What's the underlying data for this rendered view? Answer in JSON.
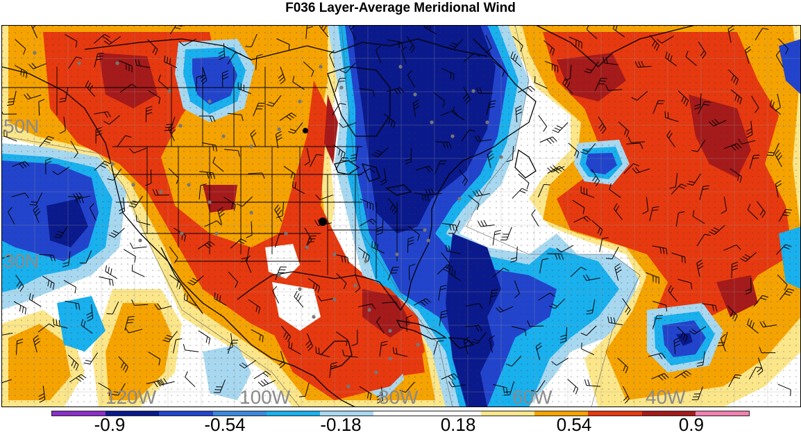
{
  "title": "F036 Layer-Average Meridional Wind",
  "lat_labels": [
    "50N",
    "30N"
  ],
  "lon_labels": [
    "120W",
    "100W",
    "80W",
    "60W",
    "40W"
  ],
  "colorbar": {
    "colors": [
      "#8b2fc9",
      "#0a1a8c",
      "#2244cc",
      "#3a88dd",
      "#19b0ee",
      "#a8d8f0",
      "#ffffff",
      "#ffffff",
      "#fbe68a",
      "#f5a300",
      "#e6390f",
      "#a51a1a",
      "#f080b0"
    ],
    "labels": [
      "-0.9",
      "-0.54",
      "-0.18",
      "0.18",
      "0.54",
      "0.9"
    ]
  },
  "field_colors": {
    "strong_neg": "#0a1a8c",
    "mid_neg": "#2244cc",
    "light_neg": "#19b0ee",
    "pale_neg": "#a8d8f0",
    "neutral": "#ffffff",
    "pale_pos": "#fbe68a",
    "light_pos": "#f5a300",
    "mid_pos": "#e6390f",
    "strong_pos": "#a51a1a"
  }
}
